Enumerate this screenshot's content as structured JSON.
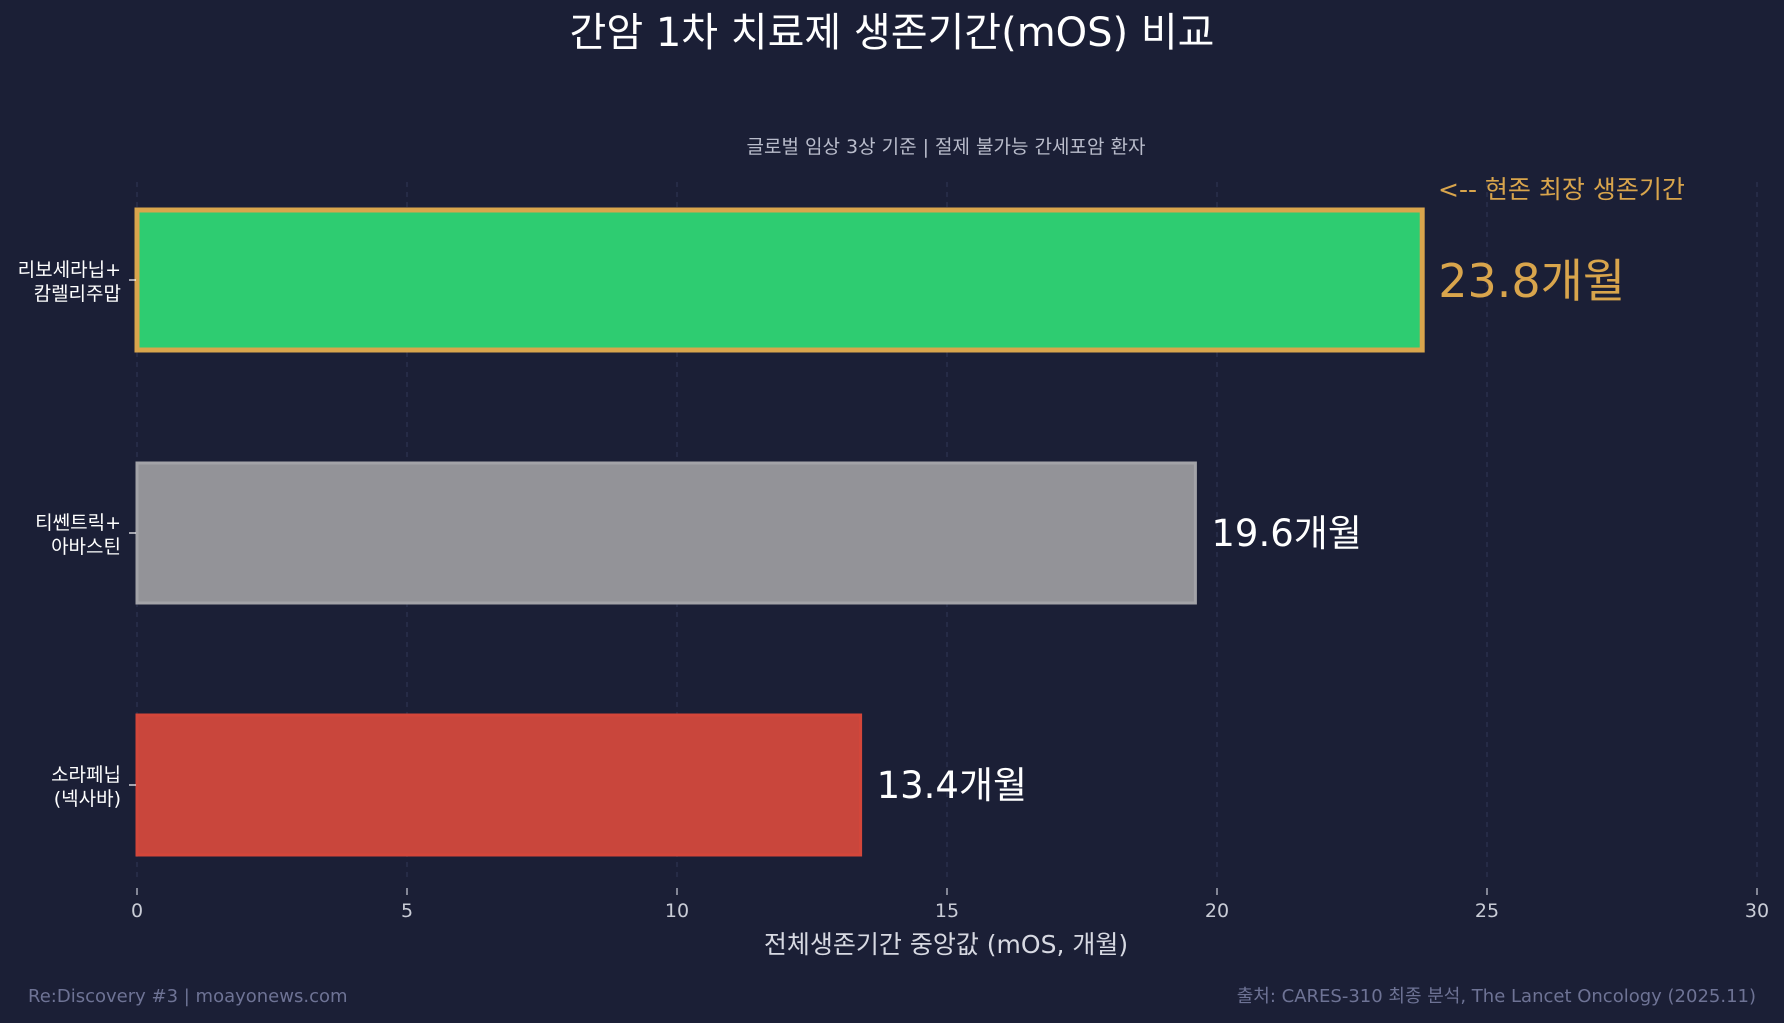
{
  "chart_data": {
    "type": "bar",
    "orientation": "horizontal",
    "title": "간암 1차 치료제 생존기간(mOS) 비교",
    "subtitle": "글로벌 임상 3상 기준 | 절제 불가능 간세포암 환자",
    "xlabel": "전체생존기간 중앙값 (mOS, 개월)",
    "ylabel": "",
    "xlim": [
      0,
      30
    ],
    "xticks": [
      0,
      5,
      10,
      15,
      20,
      25,
      30
    ],
    "grid": "vertical-dashed",
    "bars": [
      {
        "label_lines": [
          "리보세라닙+",
          "캄렐리주맙"
        ],
        "value": 23.8,
        "value_label": "23.8개월",
        "fill": "#2ecc71",
        "stroke": "#d9a54c",
        "label_color": "#d9a54c",
        "highlight": true
      },
      {
        "label_lines": [
          "티쎈트릭+",
          "아바스틴"
        ],
        "value": 19.6,
        "value_label": "19.6개월",
        "fill": "#939398",
        "stroke": "#a3a3a8",
        "label_color": "#ffffff",
        "highlight": false
      },
      {
        "label_lines": [
          "소라페닙",
          "(넥사바)"
        ],
        "value": 13.4,
        "value_label": "13.4개월",
        "fill": "#c9463c",
        "stroke": "#d3463a",
        "label_color": "#ffffff",
        "highlight": false
      }
    ],
    "annotation": "<-- 현존 최장 생존기간",
    "footer_left": "Re:Discovery #3 | moayonews.com",
    "footer_right": "출처: CARES-310 최종 분석, The Lancet Oncology (2025.11)"
  },
  "colors": {
    "background": "#1b1f36",
    "accent": "#d9a54c",
    "grid": "#2e3450",
    "axis_text": "#c9ccd6",
    "subtitle": "#b9bccb",
    "footer": "#6e7395"
  }
}
